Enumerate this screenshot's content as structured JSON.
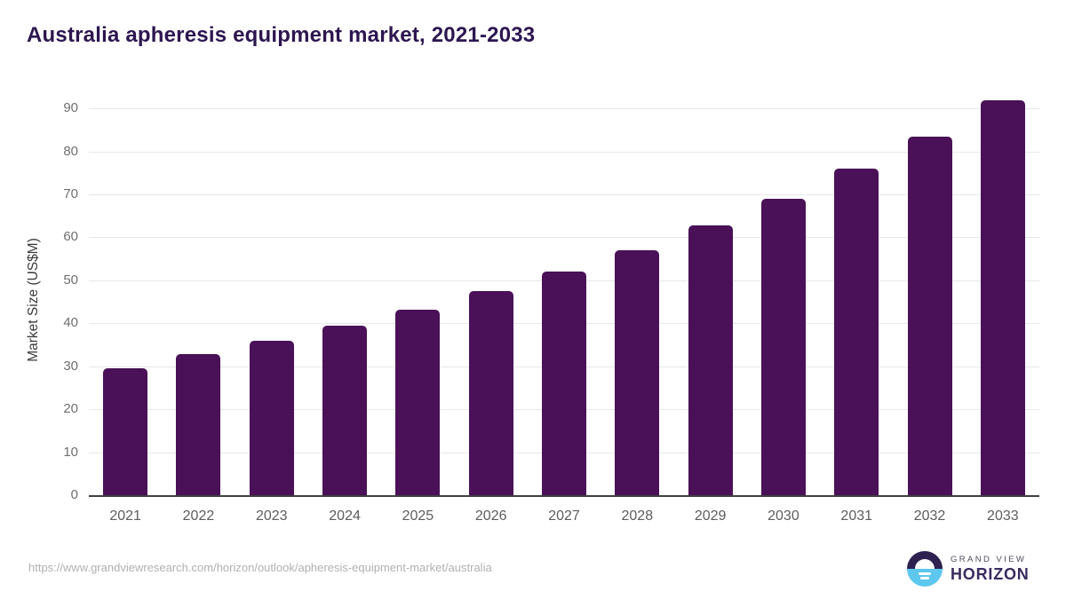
{
  "title": "Australia apheresis equipment market, 2021-2033",
  "footer": {
    "source_url": "https://www.grandviewresearch.com/horizon/outlook/apheresis-equipment-market/australia"
  },
  "logo": {
    "top_text": "GRAND VIEW",
    "bottom_text": "HORIZON"
  },
  "colors": {
    "bar": "#4a1158",
    "title": "#2d1650",
    "gridline": "#e8e8e8",
    "axis_line": "#3f3f3f",
    "y_tick_label": "#6f6f6f",
    "x_tick_label": "#5d5d5d",
    "axis_title": "#3a3a3a",
    "url_text": "#b1b1b1",
    "logo_dark": "#2e2150",
    "logo_blue": "#5ec7ee",
    "logo_purple_text": "#3a2b5f"
  },
  "chart_data": {
    "type": "bar",
    "title": "Australia apheresis equipment market, 2021-2033",
    "categories": [
      "2021",
      "2022",
      "2023",
      "2024",
      "2025",
      "2026",
      "2027",
      "2028",
      "2029",
      "2030",
      "2031",
      "2032",
      "2033"
    ],
    "values": [
      29.6,
      32.9,
      35.9,
      39.4,
      43.2,
      47.4,
      52.1,
      57.1,
      62.8,
      69.0,
      75.9,
      83.5,
      92.0
    ],
    "xlabel": "",
    "ylabel": "Market Size (US$M)",
    "ylim": [
      0,
      95
    ],
    "yticks": [
      0,
      10,
      20,
      30,
      40,
      50,
      60,
      70,
      80,
      90
    ],
    "grid": true,
    "legend": "none",
    "bar_color": "#4a1158"
  }
}
